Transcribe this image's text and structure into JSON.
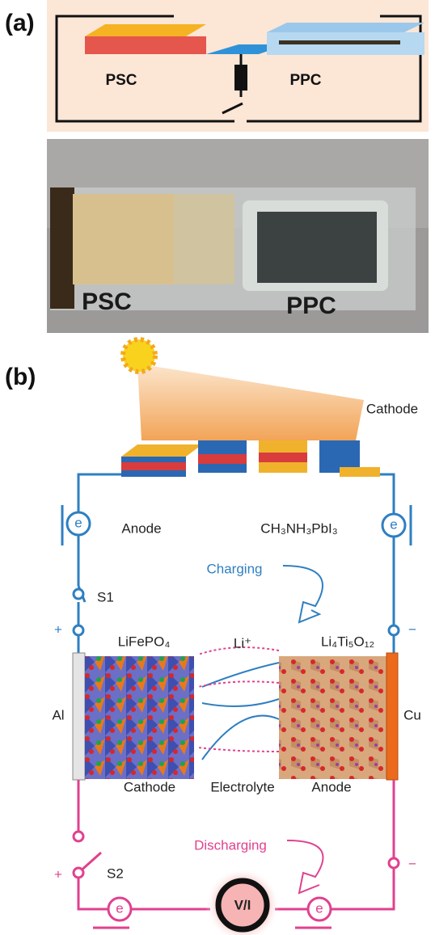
{
  "panel_a": {
    "label": "(a)",
    "schematic": {
      "left_label": "PSC",
      "right_label": "PPC"
    },
    "photo": {
      "left_label": "PSC",
      "right_label": "PPC"
    }
  },
  "panel_b": {
    "label": "(b)",
    "top_cathode": "Cathode",
    "top_anode": "Anode",
    "perovskite": "CH₃NH₃PbI₃",
    "electron_labels": [
      "e",
      "e",
      "e",
      "e"
    ],
    "charging": "Charging",
    "switch_1": "S1",
    "plus_top": "+",
    "minus_top": "−",
    "cathode_material": "LiFePO₄",
    "ion": "Li⁺",
    "anode_material": "Li₄Ti₅O₁₂",
    "left_collector": "Al",
    "right_collector": "Cu",
    "cathode": "Cathode",
    "electrolyte": "Electrolyte",
    "anode": "Anode",
    "discharging": "Discharging",
    "switch_2": "S2",
    "plus_bottom": "+",
    "minus_bottom": "−",
    "meter": "V/I"
  }
}
